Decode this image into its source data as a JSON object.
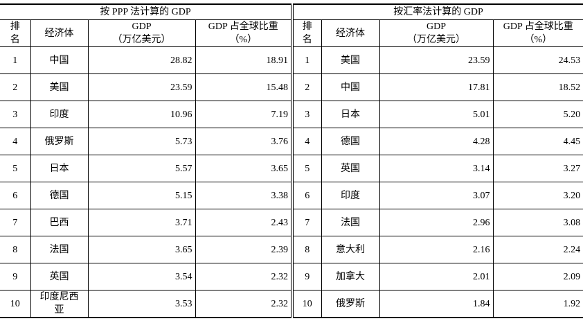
{
  "ppp": {
    "title": "按 PPP 法计算的 GDP",
    "rows": [
      {
        "rank": "1",
        "economy": "中国",
        "gdp": "28.82",
        "share": "18.91"
      },
      {
        "rank": "2",
        "economy": "美国",
        "gdp": "23.59",
        "share": "15.48"
      },
      {
        "rank": "3",
        "economy": "印度",
        "gdp": "10.96",
        "share": "7.19"
      },
      {
        "rank": "4",
        "economy": "俄罗斯",
        "gdp": "5.73",
        "share": "3.76"
      },
      {
        "rank": "5",
        "economy": "日本",
        "gdp": "5.57",
        "share": "3.65"
      },
      {
        "rank": "6",
        "economy": "德国",
        "gdp": "5.15",
        "share": "3.38"
      },
      {
        "rank": "7",
        "economy": "巴西",
        "gdp": "3.71",
        "share": "2.43"
      },
      {
        "rank": "8",
        "economy": "法国",
        "gdp": "3.65",
        "share": "2.39"
      },
      {
        "rank": "9",
        "economy": "英国",
        "gdp": "3.54",
        "share": "2.32"
      },
      {
        "rank": "10",
        "economy": "印度尼西亚",
        "gdp": "3.53",
        "share": "2.32"
      }
    ]
  },
  "fx": {
    "title": "按汇率法计算的 GDP",
    "rows": [
      {
        "rank": "1",
        "economy": "美国",
        "gdp": "23.59",
        "share": "24.53"
      },
      {
        "rank": "2",
        "economy": "中国",
        "gdp": "17.81",
        "share": "18.52"
      },
      {
        "rank": "3",
        "economy": "日本",
        "gdp": "5.01",
        "share": "5.20"
      },
      {
        "rank": "4",
        "economy": "德国",
        "gdp": "4.28",
        "share": "4.45"
      },
      {
        "rank": "5",
        "economy": "英国",
        "gdp": "3.14",
        "share": "3.27"
      },
      {
        "rank": "6",
        "economy": "印度",
        "gdp": "3.07",
        "share": "3.20"
      },
      {
        "rank": "7",
        "economy": "法国",
        "gdp": "2.96",
        "share": "3.08"
      },
      {
        "rank": "8",
        "economy": "意大利",
        "gdp": "2.16",
        "share": "2.24"
      },
      {
        "rank": "9",
        "economy": "加拿大",
        "gdp": "2.01",
        "share": "2.09"
      },
      {
        "rank": "10",
        "economy": "俄罗斯",
        "gdp": "1.84",
        "share": "1.92"
      }
    ]
  },
  "headers": {
    "rank_line1": "排",
    "rank_line2": "名",
    "economy": "经济体",
    "gdp_line1": "GDP",
    "gdp_line2": "（万亿美元）",
    "share_line1": "GDP 占全球比重",
    "share_line2": "（%）"
  }
}
